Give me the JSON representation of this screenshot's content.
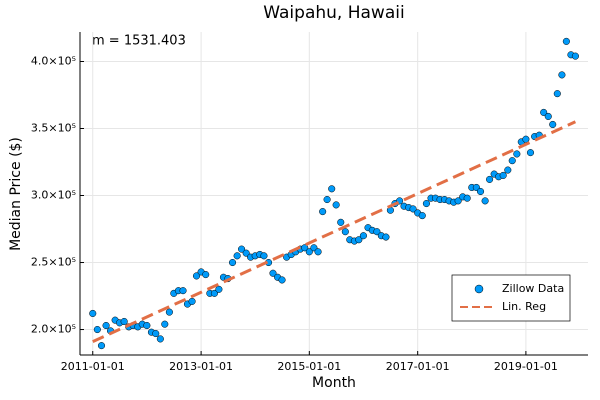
{
  "chart_data": {
    "type": "scatter",
    "title": "Waipahu, Hawaii",
    "x_label": "Month",
    "y_label": "Median Price ($)",
    "annotation": "m = 1531.403",
    "xlim": [
      "2010-10-07",
      "2020-02-24"
    ],
    "xticks": [
      "2011-01-01",
      "2013-01-01",
      "2015-01-01",
      "2017-01-01",
      "2019-01-01"
    ],
    "ylim": [
      181000,
      422000
    ],
    "yticks": [
      {
        "value": 200000,
        "label": "2.0×10⁵"
      },
      {
        "value": 250000,
        "label": "2.5×10⁵"
      },
      {
        "value": 300000,
        "label": "3.0×10⁵"
      },
      {
        "value": 350000,
        "label": "3.5×10⁵"
      },
      {
        "value": 400000,
        "label": "4.0×10⁵"
      }
    ],
    "grid": true,
    "legend": "bottom-right",
    "series": [
      {
        "name": "Zillow Data",
        "color": "#009af9",
        "x": [
          "2011-01-01",
          "2011-02-01",
          "2011-03-01",
          "2011-04-01",
          "2011-05-01",
          "2011-06-01",
          "2011-07-01",
          "2011-08-01",
          "2011-09-01",
          "2011-10-01",
          "2011-11-01",
          "2011-12-01",
          "2012-01-01",
          "2012-02-01",
          "2012-03-01",
          "2012-04-01",
          "2012-05-01",
          "2012-06-01",
          "2012-07-01",
          "2012-08-01",
          "2012-09-01",
          "2012-10-01",
          "2012-11-01",
          "2012-12-01",
          "2013-01-01",
          "2013-02-01",
          "2013-03-01",
          "2013-04-01",
          "2013-05-01",
          "2013-06-01",
          "2013-07-01",
          "2013-08-01",
          "2013-09-01",
          "2013-10-01",
          "2013-11-01",
          "2013-12-01",
          "2014-01-01",
          "2014-02-01",
          "2014-03-01",
          "2014-04-01",
          "2014-05-01",
          "2014-06-01",
          "2014-07-01",
          "2014-08-01",
          "2014-09-01",
          "2014-10-01",
          "2014-11-01",
          "2014-12-01",
          "2015-01-01",
          "2015-02-01",
          "2015-03-01",
          "2015-04-01",
          "2015-05-01",
          "2015-06-01",
          "2015-07-01",
          "2015-08-01",
          "2015-09-01",
          "2015-10-01",
          "2015-11-01",
          "2015-12-01",
          "2016-01-01",
          "2016-02-01",
          "2016-03-01",
          "2016-04-01",
          "2016-05-01",
          "2016-06-01",
          "2016-07-01",
          "2016-08-01",
          "2016-09-01",
          "2016-10-01",
          "2016-11-01",
          "2016-12-01",
          "2017-01-01",
          "2017-02-01",
          "2017-03-01",
          "2017-04-01",
          "2017-05-01",
          "2017-06-01",
          "2017-07-01",
          "2017-08-01",
          "2017-09-01",
          "2017-10-01",
          "2017-11-01",
          "2017-12-01",
          "2018-01-01",
          "2018-02-01",
          "2018-03-01",
          "2018-04-01",
          "2018-05-01",
          "2018-06-01",
          "2018-07-01",
          "2018-08-01",
          "2018-09-01",
          "2018-10-01",
          "2018-11-01",
          "2018-12-01",
          "2019-01-01",
          "2019-02-01",
          "2019-03-01",
          "2019-04-01",
          "2019-05-01",
          "2019-06-01",
          "2019-07-01",
          "2019-08-01",
          "2019-09-01",
          "2019-10-01",
          "2019-11-01",
          "2019-12-01"
        ],
        "values": [
          212000,
          200000,
          188000,
          203000,
          199000,
          207000,
          205000,
          206000,
          202000,
          203000,
          202000,
          204000,
          203000,
          198000,
          197000,
          193000,
          204000,
          213000,
          227000,
          229000,
          229000,
          219000,
          221000,
          240000,
          243000,
          241000,
          227000,
          227000,
          230000,
          239000,
          238000,
          250000,
          255000,
          260000,
          257000,
          254000,
          255000,
          256000,
          255000,
          250000,
          242000,
          239000,
          237000,
          254000,
          256000,
          258000,
          260000,
          261000,
          258000,
          261000,
          258000,
          288000,
          297000,
          305000,
          293000,
          280000,
          273000,
          267000,
          266000,
          267000,
          270000,
          276000,
          274000,
          273000,
          270000,
          269000,
          289000,
          294000,
          296000,
          292000,
          291000,
          290000,
          287000,
          285000,
          294000,
          298000,
          298000,
          297000,
          297000,
          296000,
          295000,
          296000,
          299000,
          298000,
          306000,
          306000,
          303000,
          296000,
          312000,
          316000,
          314000,
          315000,
          319000,
          326000,
          331000,
          340000,
          342000,
          332000,
          344000,
          345000,
          362000,
          359000,
          353000,
          376000,
          390000,
          415000,
          405000,
          404000
        ]
      },
      {
        "name": "Lin. Reg",
        "color": "#e26f46",
        "x": [
          "2011-01-01",
          "2019-12-01"
        ],
        "values": [
          191000,
          355000
        ]
      }
    ]
  }
}
